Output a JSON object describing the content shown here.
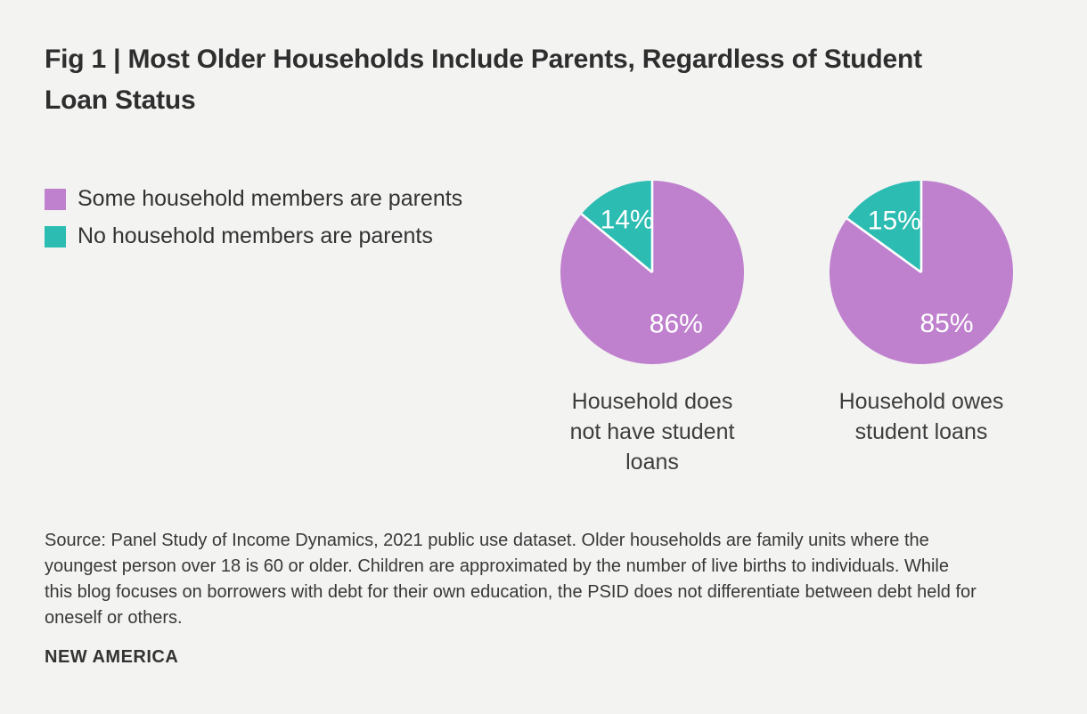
{
  "header": {
    "title": "Fig 1 | Most Older Households Include Parents, Regardless of Student Loan Status"
  },
  "legend": {
    "items": [
      {
        "key": "parents",
        "label": "Some household members are parents",
        "color": "#bf80cd"
      },
      {
        "key": "no-parents",
        "label": "No household members are parents",
        "color": "#2cbcb2"
      }
    ]
  },
  "chart_data": {
    "type": "pie",
    "title": "Fig 1 | Most Older Households Include Parents, Regardless of Student Loan Status",
    "legend_position": "left",
    "series_labels": [
      "Some household members are parents",
      "No household members are parents"
    ],
    "colors": [
      "#bf80cd",
      "#2cbcb2"
    ],
    "slice_label_color": "#ffffff",
    "start_angle_deg": 0,
    "direction": "clockwise",
    "pies": [
      {
        "category": "Household does not have student loans",
        "slices": [
          {
            "key": "parents",
            "name": "Some household members are parents",
            "pct": 86,
            "display": "86%"
          },
          {
            "key": "no-parents",
            "name": "No household members are parents",
            "pct": 14,
            "display": "14%"
          }
        ]
      },
      {
        "category": "Household owes student loans",
        "slices": [
          {
            "key": "parents",
            "name": "Some household members are parents",
            "pct": 85,
            "display": "85%"
          },
          {
            "key": "no-parents",
            "name": "No household members are parents",
            "pct": 15,
            "display": "15%"
          }
        ]
      }
    ]
  },
  "footer": {
    "source_note": "Source: Panel Study of Income Dynamics, 2021 public use dataset. Older households are family units where the youngest person over 18 is 60 or older. Children are approximated by the number of live births to individuals. While this blog focuses on borrowers with debt for their own education, the PSID does not differentiate between debt held for oneself or others.",
    "brand": "NEW AMERICA"
  },
  "colors": {
    "background": "#f3f3f2",
    "title_text": "#2e2e2e",
    "body_text": "#383838"
  }
}
